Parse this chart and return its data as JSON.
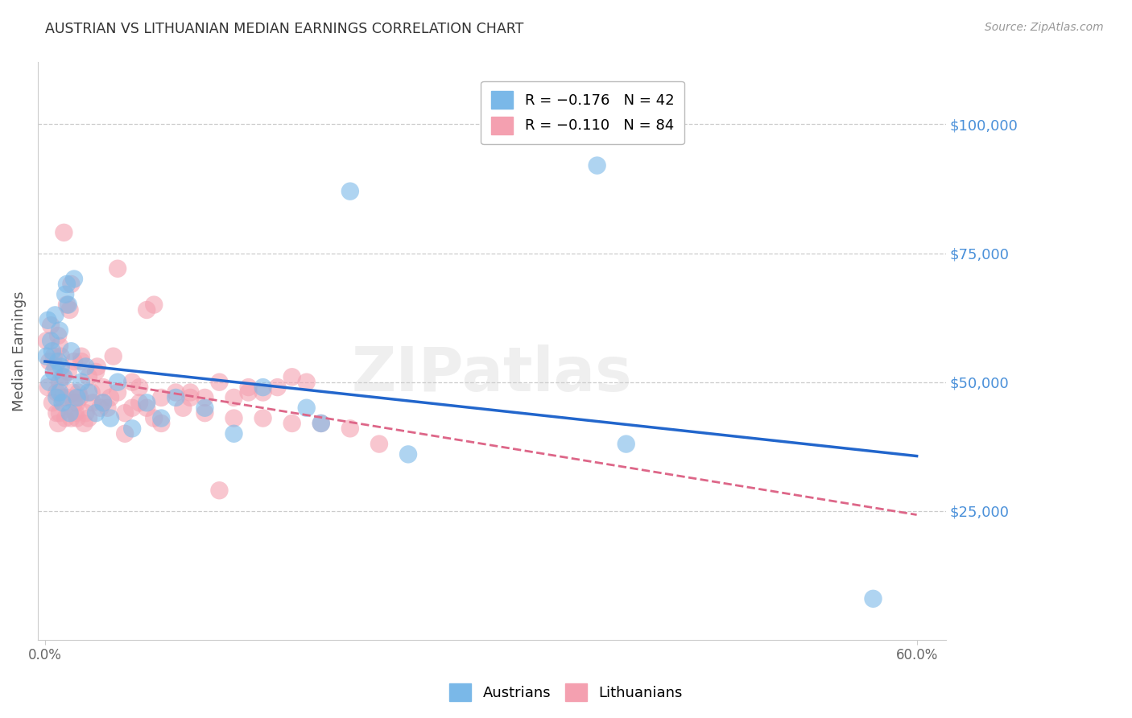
{
  "title": "AUSTRIAN VS LITHUANIAN MEDIAN EARNINGS CORRELATION CHART",
  "source": "Source: ZipAtlas.com",
  "ylabel": "Median Earnings",
  "ytick_labels": [
    "$25,000",
    "$50,000",
    "$75,000",
    "$100,000"
  ],
  "ytick_values": [
    25000,
    50000,
    75000,
    100000
  ],
  "ylim": [
    0,
    112000
  ],
  "xlim": [
    -0.005,
    0.62
  ],
  "color_austrians": "#7ab8e8",
  "color_lithuanians": "#f4a0b0",
  "color_trend_austrians": "#2266cc",
  "color_trend_lithuanians": "#dd6688",
  "background_color": "#ffffff",
  "grid_color": "#cccccc",
  "title_color": "#333333",
  "right_label_color": "#4a90d9",
  "xtick_color": "#666666",
  "watermark": "ZIPatlas",
  "aus_x": [
    0.001,
    0.002,
    0.003,
    0.004,
    0.005,
    0.006,
    0.007,
    0.008,
    0.009,
    0.01,
    0.01,
    0.011,
    0.012,
    0.013,
    0.014,
    0.015,
    0.016,
    0.017,
    0.018,
    0.02,
    0.022,
    0.025,
    0.028,
    0.03,
    0.035,
    0.04,
    0.045,
    0.05,
    0.06,
    0.07,
    0.08,
    0.09,
    0.11,
    0.13,
    0.15,
    0.18,
    0.21,
    0.38,
    0.4,
    0.25,
    0.57,
    0.19
  ],
  "aus_y": [
    55000,
    62000,
    50000,
    58000,
    56000,
    52000,
    63000,
    47000,
    54000,
    60000,
    48000,
    53000,
    46000,
    51000,
    67000,
    69000,
    65000,
    44000,
    56000,
    70000,
    47000,
    50000,
    53000,
    48000,
    44000,
    46000,
    43000,
    50000,
    41000,
    46000,
    43000,
    47000,
    45000,
    40000,
    49000,
    45000,
    87000,
    92000,
    38000,
    36000,
    8000,
    42000
  ],
  "lit_x": [
    0.001,
    0.002,
    0.003,
    0.004,
    0.005,
    0.006,
    0.007,
    0.008,
    0.009,
    0.01,
    0.01,
    0.011,
    0.012,
    0.013,
    0.014,
    0.015,
    0.016,
    0.017,
    0.018,
    0.019,
    0.02,
    0.021,
    0.022,
    0.023,
    0.024,
    0.025,
    0.027,
    0.03,
    0.033,
    0.036,
    0.04,
    0.043,
    0.047,
    0.05,
    0.055,
    0.06,
    0.065,
    0.07,
    0.075,
    0.08,
    0.09,
    0.1,
    0.11,
    0.12,
    0.13,
    0.14,
    0.15,
    0.16,
    0.17,
    0.18,
    0.02,
    0.025,
    0.03,
    0.035,
    0.04,
    0.05,
    0.06,
    0.07,
    0.08,
    0.1,
    0.12,
    0.14,
    0.008,
    0.009,
    0.01,
    0.012,
    0.015,
    0.018,
    0.022,
    0.028,
    0.032,
    0.038,
    0.045,
    0.055,
    0.065,
    0.075,
    0.095,
    0.11,
    0.13,
    0.15,
    0.17,
    0.19,
    0.21,
    0.23
  ],
  "lit_y": [
    58000,
    49000,
    54000,
    61000,
    46000,
    55000,
    53000,
    48000,
    59000,
    50000,
    44000,
    55000,
    47000,
    79000,
    43000,
    65000,
    52000,
    64000,
    69000,
    48000,
    54000,
    44000,
    43000,
    48000,
    47000,
    54000,
    42000,
    51000,
    46000,
    53000,
    49000,
    45000,
    55000,
    72000,
    40000,
    45000,
    49000,
    64000,
    65000,
    47000,
    48000,
    48000,
    47000,
    29000,
    47000,
    49000,
    48000,
    49000,
    51000,
    50000,
    46000,
    55000,
    43000,
    52000,
    46000,
    48000,
    50000,
    45000,
    42000,
    47000,
    50000,
    48000,
    44000,
    42000,
    57000,
    51000,
    47000,
    43000,
    46000,
    44000,
    48000,
    45000,
    47000,
    44000,
    46000,
    43000,
    45000,
    44000,
    43000,
    43000,
    42000,
    42000,
    41000,
    38000
  ]
}
